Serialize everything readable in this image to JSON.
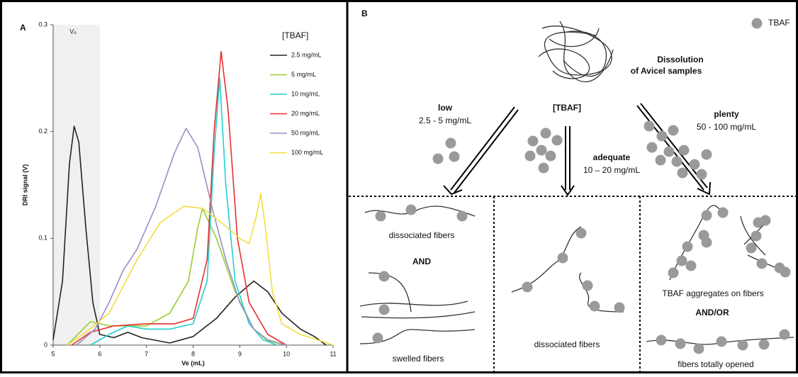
{
  "chart_data": {
    "type": "line",
    "panel_label": "A",
    "xlabel": "Ve (mL)",
    "ylabel": "DRI signal (V)",
    "xlim": [
      5,
      11
    ],
    "xticks": [
      5,
      6,
      7,
      8,
      9,
      10,
      11
    ],
    "ylim": [
      0,
      0.3
    ],
    "yticks": [
      0,
      0.1,
      0.2,
      0.3
    ],
    "shaded_region": {
      "xlim": [
        5,
        6
      ],
      "label": "Vₒ",
      "color": "#f0f0f0"
    },
    "legend_title": "[TBAF]",
    "legend": "upper right",
    "series": [
      {
        "name": "2.5 mg/mL",
        "color": "#222222",
        "x": [
          5.0,
          5.2,
          5.35,
          5.45,
          5.55,
          5.7,
          5.85,
          6.0,
          6.3,
          6.6,
          6.9,
          7.5,
          8.0,
          8.5,
          8.9,
          9.3,
          9.6,
          9.9,
          10.3,
          10.6,
          10.85
        ],
        "values": [
          0.005,
          0.06,
          0.17,
          0.205,
          0.19,
          0.11,
          0.04,
          0.01,
          0.007,
          0.012,
          0.007,
          0.002,
          0.008,
          0.025,
          0.045,
          0.06,
          0.05,
          0.03,
          0.015,
          0.008,
          0
        ]
      },
      {
        "name": "5 mg/mL",
        "color": "#9acd32",
        "x": [
          5.3,
          5.8,
          6.2,
          7.0,
          7.5,
          7.9,
          8.1,
          8.2,
          8.5,
          8.9,
          9.3,
          9.6,
          10.0
        ],
        "values": [
          0,
          0.022,
          0.018,
          0.018,
          0.03,
          0.06,
          0.11,
          0.128,
          0.1,
          0.05,
          0.015,
          0.004,
          0
        ]
      },
      {
        "name": "10 mg/mL",
        "color": "#20d0d0",
        "x": [
          5.8,
          6.2,
          6.6,
          7.0,
          7.5,
          8.0,
          8.3,
          8.45,
          8.57,
          8.7,
          8.9,
          9.2,
          9.5,
          9.8
        ],
        "values": [
          0,
          0.01,
          0.018,
          0.015,
          0.015,
          0.02,
          0.06,
          0.18,
          0.25,
          0.15,
          0.06,
          0.02,
          0.005,
          0
        ]
      },
      {
        "name": "20 mg/mL",
        "color": "#e83030",
        "x": [
          5.4,
          5.8,
          6.3,
          7.0,
          7.6,
          8.0,
          8.3,
          8.45,
          8.6,
          8.75,
          8.95,
          9.2,
          9.6,
          10.0
        ],
        "values": [
          0,
          0.012,
          0.018,
          0.02,
          0.02,
          0.025,
          0.08,
          0.2,
          0.275,
          0.22,
          0.1,
          0.04,
          0.01,
          0
        ]
      },
      {
        "name": "50 mg/mL",
        "color": "#9a8fc4",
        "x": [
          5.5,
          5.9,
          6.2,
          6.5,
          6.8,
          7.2,
          7.6,
          7.85,
          8.1,
          8.4,
          8.7,
          9.0,
          9.3,
          9.6,
          10.0
        ],
        "values": [
          0,
          0.015,
          0.04,
          0.07,
          0.09,
          0.13,
          0.18,
          0.203,
          0.185,
          0.13,
          0.08,
          0.04,
          0.015,
          0.005,
          0
        ]
      },
      {
        "name": "100 mg/mL",
        "color": "#f5dc3c",
        "x": [
          5.3,
          5.7,
          6.2,
          6.8,
          7.3,
          7.8,
          8.2,
          8.6,
          9.0,
          9.2,
          9.35,
          9.45,
          9.55,
          9.7,
          9.9,
          10.3,
          10.8,
          11.0
        ],
        "values": [
          0,
          0.012,
          0.03,
          0.08,
          0.115,
          0.13,
          0.128,
          0.115,
          0.1,
          0.095,
          0.12,
          0.142,
          0.11,
          0.05,
          0.02,
          0.01,
          0.003,
          0
        ]
      }
    ]
  },
  "diagram": {
    "panel_label": "B",
    "legend_label": "TBAF",
    "dissolution": [
      "Dissolution",
      "of Avicel samples"
    ],
    "center_label": "[TBAF]",
    "low": {
      "title": "low",
      "range": "2.5 - 5 mg/mL"
    },
    "adequate": {
      "title": "adequate",
      "range": "10 – 20 mg/mL"
    },
    "plenty": {
      "title": "plenty",
      "range": "50 - 100 mg/mL"
    },
    "low_result": {
      "top": "dissociated fibers",
      "joiner": "AND",
      "bottom": "swelled fibers"
    },
    "adequate_result": {
      "caption": "dissociated fibers"
    },
    "plenty_result": {
      "top": "TBAF aggregates on fibers",
      "joiner": "AND/OR",
      "bottom": "fibers totally opened"
    }
  }
}
